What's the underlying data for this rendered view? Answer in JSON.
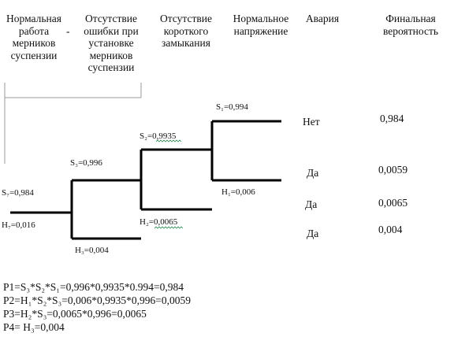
{
  "headers": [
    [
      "Нормальная",
      "работа",
      "мерников",
      "суспензии"
    ],
    [
      "Отсутствие",
      "ошибки при",
      "установке",
      "мерников",
      "суспензии"
    ],
    [
      "Отсутствие",
      "короткого",
      "замыкания"
    ],
    [
      "Нормальное",
      "напряжение"
    ],
    [
      "Авария"
    ],
    [
      "Финальная",
      "вероятность"
    ]
  ],
  "header_dash": "-",
  "branches": {
    "s1": "S₁=0,994",
    "s2": "S₂=0,9935",
    "s3": "S₃=0,996",
    "s_root": "S₇=0,984",
    "h_root": "H₇=0,016",
    "h1": "H₁=0,006",
    "h2": "H₂=0,0065",
    "h3": "H₃=0,004"
  },
  "outcomes": [
    {
      "accident": "Нет",
      "probability": "0,984"
    },
    {
      "accident": "Да",
      "probability": "0,0059"
    },
    {
      "accident": "Да",
      "probability": "0,0065"
    },
    {
      "accident": "Да",
      "probability": "0,004"
    }
  ],
  "formulas": [
    "P1=S₃*S₂*S₁=0,996*0,9935*0.994=0,984",
    "P2=H₁*S₂*S₃=0,006*0,9935*0,996=0,0059",
    "P3=H₂*S₃=0,0065*0,996=0,0065",
    "P4= H₃=0,004"
  ]
}
